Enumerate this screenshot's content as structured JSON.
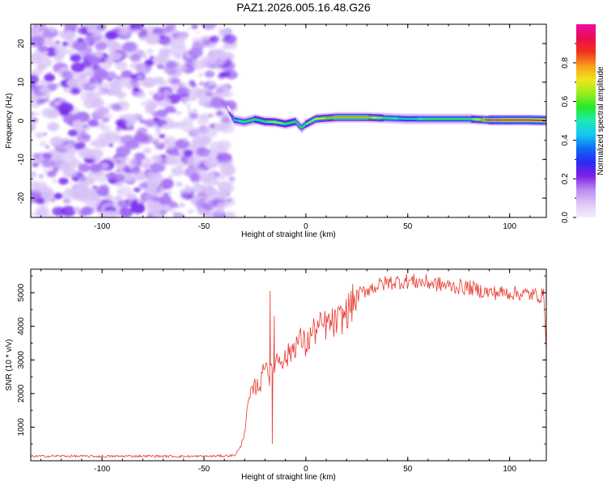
{
  "title": "PAZ1.2026.005.16.48.G26",
  "colors": {
    "axis": "#000000",
    "snr_line": "#e8382f",
    "purple": "#7a2cf0",
    "noise_light": "#d9c4f7",
    "colorbar": [
      "#f5eef9",
      "#e1c7f7",
      "#b98cf2",
      "#7f22e6",
      "#2a2bf0",
      "#0f6cf5",
      "#14c8f0",
      "#1fe9b3",
      "#24ea2a",
      "#9bee1a",
      "#f0e51c",
      "#f79b1d",
      "#f2321a",
      "#e80d4f",
      "#f00aa3"
    ]
  },
  "chart_data": [
    {
      "type": "heatmap",
      "name": "spectrogram",
      "xlabel": "Height of straight line (km)",
      "ylabel": "Frequency (Hz)",
      "xlim": [
        -135,
        118
      ],
      "ylim": [
        -25,
        25
      ],
      "x_ticks": [
        -100,
        -50,
        0,
        50,
        100
      ],
      "x_tick_labels": [
        "-100",
        "-50",
        "0",
        "50",
        "100"
      ],
      "y_ticks": [
        -20,
        -10,
        0,
        10,
        20
      ],
      "y_tick_labels": [
        "-20",
        "-10",
        "0",
        "10",
        "20"
      ],
      "noise_region_x": [
        -135,
        -36
      ],
      "signal_start_x": -38,
      "signal_ridge_x": [
        -38,
        -35,
        -30,
        -25,
        -20,
        -15,
        -10,
        -5,
        -2,
        0,
        5,
        10,
        15,
        20,
        30,
        40,
        50,
        60,
        70,
        80,
        90,
        100,
        110,
        118
      ],
      "signal_ridge_freq": [
        2.5,
        0.2,
        -0.3,
        0.4,
        -0.2,
        -0.3,
        -0.8,
        -0.2,
        -1.8,
        -0.9,
        0.5,
        0.7,
        0.9,
        0.9,
        0.9,
        0.7,
        0.5,
        0.5,
        0.5,
        0.5,
        0.2,
        0.2,
        0.2,
        0.1
      ],
      "signal_amplitude": [
        0.15,
        0.5,
        0.55,
        0.6,
        0.6,
        0.65,
        0.6,
        0.6,
        0.55,
        0.6,
        0.7,
        0.75,
        0.8,
        0.8,
        0.8,
        0.55,
        0.5,
        0.55,
        0.55,
        0.55,
        0.9,
        0.95,
        0.95,
        0.95
      ]
    },
    {
      "type": "colorbar",
      "name": "colorbar",
      "label": "Normalized spectral amplitude",
      "range": [
        0,
        1
      ],
      "ticks": [
        0,
        0.2,
        0.4,
        0.6,
        0.8
      ],
      "tick_labels": [
        "0.0",
        "0.2",
        "0.4",
        "0.6",
        "0.8"
      ]
    },
    {
      "type": "line",
      "name": "snr",
      "xlabel": "Height of straight line (km)",
      "ylabel": "SNR (10 * v/v)",
      "xlim": [
        -135,
        118
      ],
      "ylim": [
        0,
        5700
      ],
      "x_ticks": [
        -100,
        -50,
        0,
        50,
        100
      ],
      "x_tick_labels": [
        "-100",
        "-50",
        "0",
        "50",
        "100"
      ],
      "y_ticks": [
        1000,
        2000,
        3000,
        4000,
        5000
      ],
      "y_tick_labels": [
        "1000",
        "2000",
        "3000",
        "4000",
        "5000"
      ],
      "series": [
        {
          "name": "SNR",
          "x": [
            -135,
            -120,
            -100,
            -80,
            -60,
            -45,
            -35,
            -32,
            -30,
            -28,
            -25,
            -22,
            -20,
            -18,
            -16,
            -15,
            -12,
            -10,
            -7,
            -5,
            -2,
            0,
            3,
            5,
            8,
            10,
            15,
            20,
            25,
            30,
            40,
            50,
            60,
            70,
            80,
            90,
            100,
            110,
            117,
            118
          ],
          "y": [
            130,
            140,
            130,
            140,
            130,
            135,
            160,
            400,
            900,
            1800,
            2200,
            2300,
            3100,
            2500,
            2700,
            3000,
            3100,
            3000,
            3300,
            3500,
            3600,
            3400,
            3800,
            3900,
            4000,
            4050,
            4100,
            4400,
            4900,
            5100,
            5300,
            5350,
            5300,
            5200,
            5150,
            5000,
            5000,
            4950,
            4900,
            3300
          ],
          "spikes": [
            {
              "x": -17.5,
              "y": 5050
            },
            {
              "x": -16.5,
              "y": 500
            },
            {
              "x": -15.5,
              "y": 4300
            }
          ]
        }
      ]
    }
  ]
}
